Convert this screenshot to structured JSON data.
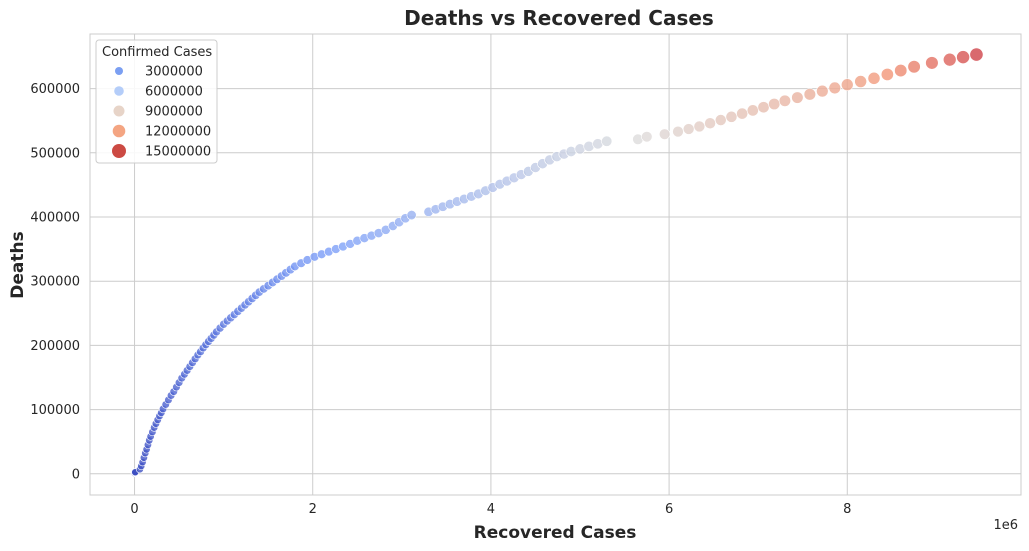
{
  "chart_data": {
    "type": "scatter",
    "title": "Deaths vs Recovered Cases",
    "xlabel": "Recovered Cases",
    "ylabel": "Deaths",
    "x_offset_label": "1e6",
    "xlim": [
      -0.5,
      9.95
    ],
    "ylim": [
      -33000,
      685000
    ],
    "x_ticks": [
      0,
      2,
      4,
      6,
      8
    ],
    "x_tick_labels": [
      "0",
      "2",
      "4",
      "6",
      "8"
    ],
    "y_ticks": [
      0,
      100000,
      200000,
      300000,
      400000,
      500000,
      600000
    ],
    "y_tick_labels": [
      "0",
      "100000",
      "200000",
      "300000",
      "400000",
      "500000",
      "600000"
    ],
    "grid": true,
    "legend": {
      "title": "Confirmed Cases",
      "placement": "top-left",
      "entries": [
        {
          "label": "3000000",
          "color": "#7b9ff2",
          "size": 4.0
        },
        {
          "label": "6000000",
          "color": "#b4cdf9",
          "size": 4.8
        },
        {
          "label": "9000000",
          "color": "#e7d4c8",
          "size": 5.5
        },
        {
          "label": "12000000",
          "color": "#f4a582",
          "size": 6.3
        },
        {
          "label": "15000000",
          "color": "#cc4a43",
          "size": 7.0
        }
      ]
    },
    "hue_range": [
      0,
      16500000
    ],
    "points": [
      [
        0.0,
        1000,
        0.01
      ],
      [
        0.005,
        1800,
        0.05
      ],
      [
        0.008,
        2500,
        0.08
      ],
      [
        0.06,
        7000,
        0.25
      ],
      [
        0.075,
        12000,
        0.3
      ],
      [
        0.09,
        18000,
        0.35
      ],
      [
        0.105,
        25000,
        0.4
      ],
      [
        0.12,
        32000,
        0.45
      ],
      [
        0.135,
        38000,
        0.5
      ],
      [
        0.15,
        45000,
        0.55
      ],
      [
        0.165,
        52000,
        0.6
      ],
      [
        0.18,
        58000,
        0.65
      ],
      [
        0.2,
        65000,
        0.7
      ],
      [
        0.22,
        72000,
        0.75
      ],
      [
        0.24,
        78000,
        0.8
      ],
      [
        0.26,
        84000,
        0.85
      ],
      [
        0.28,
        90000,
        0.9
      ],
      [
        0.3,
        95000,
        0.95
      ],
      [
        0.32,
        101000,
        1.0
      ],
      [
        0.35,
        108000,
        1.05
      ],
      [
        0.38,
        115000,
        1.1
      ],
      [
        0.41,
        122000,
        1.15
      ],
      [
        0.44,
        128000,
        1.2
      ],
      [
        0.47,
        135000,
        1.25
      ],
      [
        0.5,
        142000,
        1.3
      ],
      [
        0.53,
        149000,
        1.36
      ],
      [
        0.56,
        155000,
        1.42
      ],
      [
        0.59,
        161000,
        1.48
      ],
      [
        0.62,
        167000,
        1.54
      ],
      [
        0.65,
        173000,
        1.6
      ],
      [
        0.68,
        179000,
        1.66
      ],
      [
        0.71,
        185000,
        1.72
      ],
      [
        0.74,
        190000,
        1.78
      ],
      [
        0.77,
        196000,
        1.84
      ],
      [
        0.8,
        201000,
        1.9
      ],
      [
        0.83,
        206000,
        1.96
      ],
      [
        0.86,
        211000,
        2.02
      ],
      [
        0.89,
        216000,
        2.08
      ],
      [
        0.92,
        221000,
        2.14
      ],
      [
        0.96,
        227000,
        2.2
      ],
      [
        1.0,
        233000,
        2.27
      ],
      [
        1.04,
        238000,
        2.34
      ],
      [
        1.08,
        243000,
        2.41
      ],
      [
        1.12,
        248000,
        2.48
      ],
      [
        1.16,
        253000,
        2.55
      ],
      [
        1.2,
        258000,
        2.62
      ],
      [
        1.24,
        263000,
        2.69
      ],
      [
        1.28,
        268000,
        2.76
      ],
      [
        1.32,
        273000,
        2.83
      ],
      [
        1.36,
        278000,
        2.9
      ],
      [
        1.4,
        283000,
        2.97
      ],
      [
        1.45,
        288000,
        3.05
      ],
      [
        1.5,
        293000,
        3.13
      ],
      [
        1.55,
        298000,
        3.21
      ],
      [
        1.6,
        303000,
        3.29
      ],
      [
        1.65,
        308000,
        3.37
      ],
      [
        1.7,
        313000,
        3.45
      ],
      [
        1.75,
        318000,
        3.53
      ],
      [
        1.8,
        323000,
        3.61
      ],
      [
        1.87,
        328000,
        3.7
      ],
      [
        1.94,
        333000,
        3.8
      ],
      [
        2.02,
        338000,
        3.9
      ],
      [
        2.1,
        342000,
        4.0
      ],
      [
        2.18,
        346000,
        4.1
      ],
      [
        2.26,
        350000,
        4.2
      ],
      [
        2.34,
        354000,
        4.3
      ],
      [
        2.42,
        358000,
        4.4
      ],
      [
        2.5,
        363000,
        4.5
      ],
      [
        2.58,
        367000,
        4.6
      ],
      [
        2.66,
        371000,
        4.7
      ],
      [
        2.74,
        375000,
        4.8
      ],
      [
        2.82,
        380000,
        4.9
      ],
      [
        2.9,
        386000,
        5.0
      ],
      [
        2.97,
        392000,
        5.1
      ],
      [
        3.04,
        398000,
        5.2
      ],
      [
        3.11,
        403000,
        5.3
      ],
      [
        3.3,
        408000,
        5.5
      ],
      [
        3.38,
        412000,
        5.6
      ],
      [
        3.46,
        416000,
        5.7
      ],
      [
        3.54,
        420000,
        5.8
      ],
      [
        3.62,
        424000,
        5.9
      ],
      [
        3.7,
        428000,
        6.0
      ],
      [
        3.78,
        432000,
        6.1
      ],
      [
        3.86,
        436000,
        6.2
      ],
      [
        3.94,
        441000,
        6.3
      ],
      [
        4.02,
        446000,
        6.4
      ],
      [
        4.1,
        451000,
        6.5
      ],
      [
        4.18,
        456000,
        6.6
      ],
      [
        4.26,
        461000,
        6.7
      ],
      [
        4.34,
        466000,
        6.8
      ],
      [
        4.42,
        471000,
        6.9
      ],
      [
        4.5,
        477000,
        7.0
      ],
      [
        4.58,
        483000,
        7.1
      ],
      [
        4.66,
        489000,
        7.2
      ],
      [
        4.74,
        494000,
        7.3
      ],
      [
        4.82,
        498000,
        7.4
      ],
      [
        4.9,
        502000,
        7.5
      ],
      [
        5.0,
        506000,
        7.6
      ],
      [
        5.1,
        510000,
        7.7
      ],
      [
        5.2,
        514000,
        7.8
      ],
      [
        5.3,
        518000,
        7.9
      ],
      [
        5.65,
        521000,
        8.3
      ],
      [
        5.75,
        525000,
        8.45
      ],
      [
        5.95,
        529000,
        8.7
      ],
      [
        6.1,
        533000,
        8.9
      ],
      [
        6.22,
        537000,
        9.05
      ],
      [
        6.34,
        541000,
        9.2
      ],
      [
        6.46,
        546000,
        9.35
      ],
      [
        6.58,
        551000,
        9.5
      ],
      [
        6.7,
        556000,
        9.65
      ],
      [
        6.82,
        561000,
        9.8
      ],
      [
        6.94,
        566000,
        9.95
      ],
      [
        7.06,
        571000,
        10.1
      ],
      [
        7.18,
        576000,
        10.3
      ],
      [
        7.3,
        581000,
        10.5
      ],
      [
        7.44,
        586000,
        10.7
      ],
      [
        7.58,
        591000,
        10.9
      ],
      [
        7.72,
        596000,
        11.1
      ],
      [
        7.86,
        601000,
        11.3
      ],
      [
        8.0,
        606000,
        11.55
      ],
      [
        8.15,
        611000,
        11.8
      ],
      [
        8.3,
        616000,
        12.1
      ],
      [
        8.45,
        622000,
        12.4
      ],
      [
        8.6,
        628000,
        12.7
      ],
      [
        8.75,
        634000,
        13.0
      ],
      [
        8.95,
        640000,
        13.4
      ],
      [
        9.15,
        645000,
        13.8
      ],
      [
        9.3,
        649000,
        14.2
      ],
      [
        9.45,
        653000,
        14.7
      ]
    ]
  }
}
